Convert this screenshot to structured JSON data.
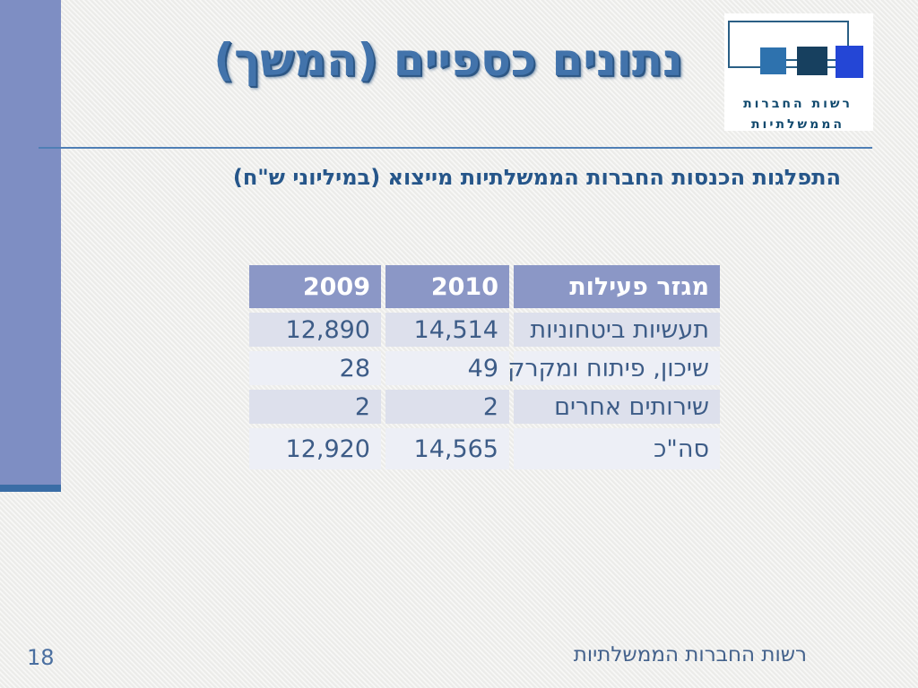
{
  "slide": {
    "title": "נתונים כספיים (המשך)",
    "subtitle": "התפלגות הכנסות החברות הממשלתיות מייצוא (במיליוני ש\"ח)",
    "footer_text": "רשות החברות הממשלתיות",
    "page_number": "18"
  },
  "logo": {
    "line1": "רשות החברות",
    "line2": "הממשלתיות"
  },
  "colors": {
    "accent_bar": "#7e8ec3",
    "accent_bar_strip": "#3a6da6",
    "title_text": "#4273ab",
    "title_rule": "#4f7fb5",
    "subtitle_text": "#26568a",
    "table_header_bg": "#8b97c6",
    "table_row_odd": "#dde0ec",
    "table_row_even": "#edeff6",
    "table_text": "#3d5c87",
    "logo_square_1": "#2e72ae",
    "logo_square_2": "#17405f",
    "logo_square_3": "#2446d6",
    "logo_outline": "#2a5f85",
    "logo_text": "#10496e"
  },
  "table": {
    "headers": [
      "מגזר פעילות",
      "2010",
      "2009"
    ],
    "rows": [
      {
        "label": "תעשיות ביטחוניות",
        "y2010": "14,514",
        "y2009": "12,890"
      },
      {
        "label": "שיכון, פיתוח ומקרקעין",
        "y2010": "49",
        "y2009": "28"
      },
      {
        "label": "שירותים אחרים",
        "y2010": "2",
        "y2009": "2"
      },
      {
        "label": "סה\"כ",
        "y2010": "14,565",
        "y2009": "12,920"
      }
    ]
  }
}
